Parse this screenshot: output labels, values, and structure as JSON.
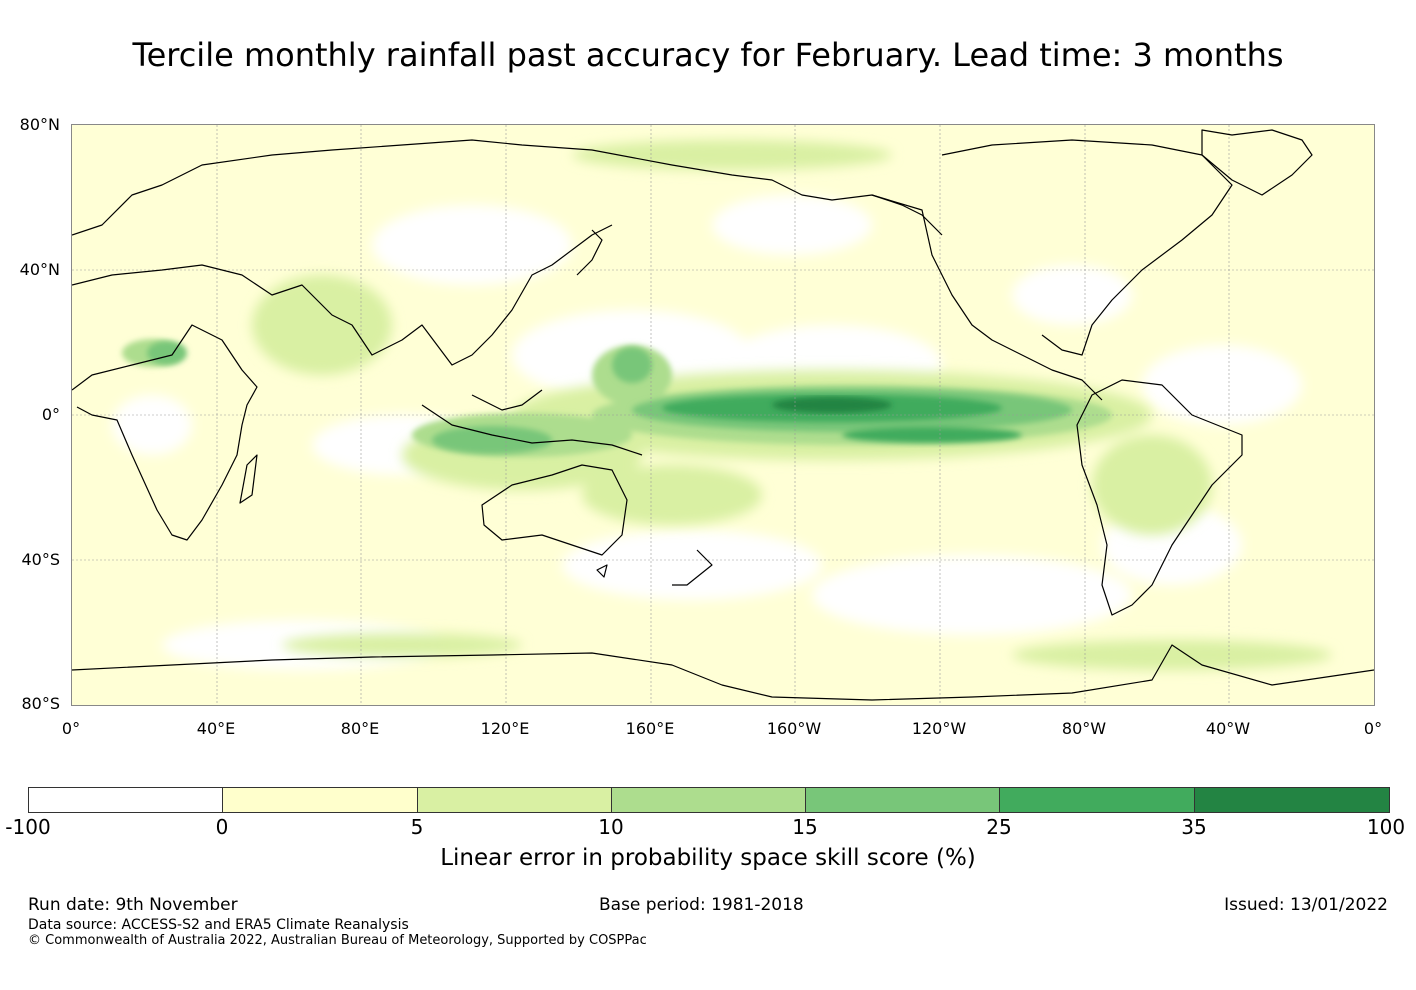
{
  "title": "Tercile monthly rainfall past accuracy for February. Lead time: 3 months",
  "axes": {
    "lat_labels": [
      "80°N",
      "40°N",
      "0°",
      "40°S",
      "80°S"
    ],
    "lon_labels": [
      "0°",
      "40°E",
      "80°E",
      "120°E",
      "160°E",
      "160°W",
      "120°W",
      "80°W",
      "40°W",
      "0°"
    ]
  },
  "colorbar": {
    "ticks": [
      "-100",
      "0",
      "5",
      "10",
      "15",
      "25",
      "35",
      "100"
    ],
    "colors": [
      "#ffffff",
      "#ffffcc",
      "#d9f0a3",
      "#addd8e",
      "#78c679",
      "#41ab5d",
      "#238443"
    ],
    "label": "Linear error in probability space skill score (%)"
  },
  "footer": {
    "run_date": "Run date: 9th November",
    "base_period": "Base period: 1981-2018",
    "issued": "Issued: 13/01/2022",
    "data_source": "Data source: ACCESS-S2 and ERA5 Climate Reanalysis",
    "copyright": "© Commonwealth of Australia 2022, Australian Bureau of Meteorology, Supported by COSPPac"
  }
}
